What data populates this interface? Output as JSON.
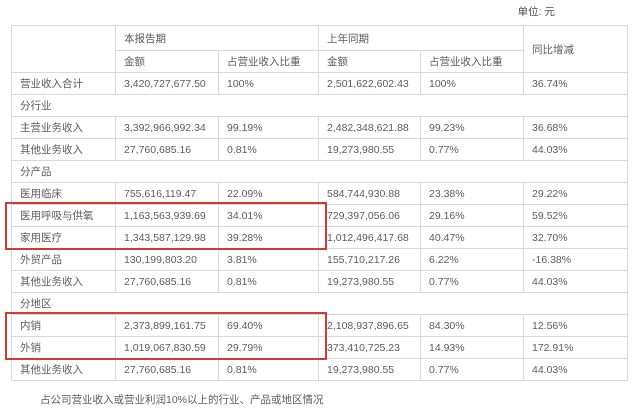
{
  "unit_label": "单位: 元",
  "colors": {
    "highlight_red": "#cf3a32",
    "border_gray": "#d8d8d8",
    "text_gray": "#5c5c5c"
  },
  "table": {
    "header": {
      "current_period": "本报告期",
      "prior_period": "上年同期",
      "yoy_change": "同比增减",
      "amount": "金额",
      "pct_of_revenue": "占营业收入比重"
    },
    "rows": [
      {
        "type": "data",
        "label": "营业收入合计",
        "cur_amt": "3,420,727,677.50",
        "cur_pct": "100%",
        "prev_amt": "2,501,622,602.43",
        "prev_pct": "100%",
        "yoy": "36.74%"
      },
      {
        "type": "section",
        "label": "分行业"
      },
      {
        "type": "data",
        "label": "主营业务收入",
        "cur_amt": "3,392,966,992.34",
        "cur_pct": "99.19%",
        "prev_amt": "2,482,348,621.88",
        "prev_pct": "99.23%",
        "yoy": "36.68%"
      },
      {
        "type": "data",
        "label": "其他业务收入",
        "cur_amt": "27,760,685.16",
        "cur_pct": "0.81%",
        "prev_amt": "19,273,980.55",
        "prev_pct": "0.77%",
        "yoy": "44.03%"
      },
      {
        "type": "section",
        "label": "分产品"
      },
      {
        "type": "data",
        "label": "医用临床",
        "cur_amt": "755,616,119.47",
        "cur_pct": "22.09%",
        "prev_amt": "584,744,930.88",
        "prev_pct": "23.38%",
        "yoy": "29.22%"
      },
      {
        "type": "data",
        "label": "医用呼吸与供氧",
        "cur_amt": "1,163,563,939.69",
        "cur_pct": "34.01%",
        "prev_amt": "729,397,056.06",
        "prev_pct": "29.16%",
        "yoy": "59.52%",
        "highlighted": true
      },
      {
        "type": "data",
        "label": "家用医疗",
        "cur_amt": "1,343,587,129.98",
        "cur_pct": "39.28%",
        "prev_amt": "1,012,496,417.68",
        "prev_pct": "40.47%",
        "yoy": "32.70%",
        "highlighted": true
      },
      {
        "type": "data",
        "label": "外贸产品",
        "cur_amt": "130,199,803.20",
        "cur_pct": "3.81%",
        "prev_amt": "155,710,217.26",
        "prev_pct": "6.22%",
        "yoy": "-16.38%"
      },
      {
        "type": "data",
        "label": "其他业务收入",
        "cur_amt": "27,760,685.16",
        "cur_pct": "0.81%",
        "prev_amt": "19,273,980.55",
        "prev_pct": "0.77%",
        "yoy": "44.03%"
      },
      {
        "type": "section",
        "label": "分地区"
      },
      {
        "type": "data",
        "label": "内销",
        "cur_amt": "2,373,899,161.75",
        "cur_pct": "69.40%",
        "prev_amt": "2,108,937,896.65",
        "prev_pct": "84.30%",
        "yoy": "12.56%",
        "highlighted": true
      },
      {
        "type": "data",
        "label": "外销",
        "cur_amt": "1,019,067,830.59",
        "cur_pct": "29.79%",
        "prev_amt": "373,410,725.23",
        "prev_pct": "14.93%",
        "yoy": "172.91%",
        "highlighted": true
      },
      {
        "type": "data",
        "label": "其他业务收入",
        "cur_amt": "27,760,685.16",
        "cur_pct": "0.81%",
        "prev_amt": "19,273,980.55",
        "prev_pct": "0.77%",
        "yoy": "44.03%"
      }
    ]
  },
  "footer_note": "占公司营业收入或营业利润10%以上的行业、产品或地区情况"
}
